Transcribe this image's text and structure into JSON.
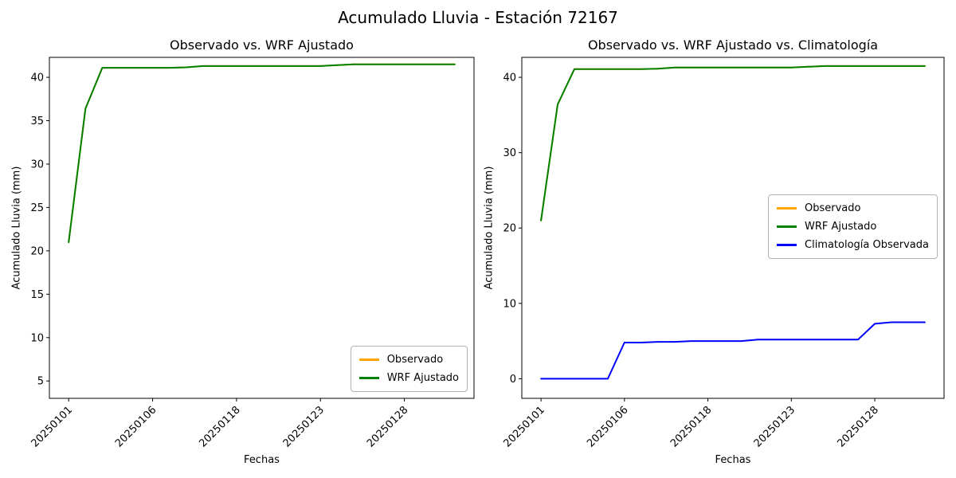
{
  "figure": {
    "title": "Acumulado Lluvia - Estación 72167",
    "background": "#ffffff"
  },
  "chart_data": [
    {
      "type": "line",
      "title": "Observado vs. WRF Ajustado",
      "xlabel": "Fechas",
      "ylabel": "Acumulado Lluvia (mm)",
      "grid": false,
      "legend_position": "lower right",
      "x": [
        "20250101",
        "20250102",
        "20250103",
        "20250104",
        "20250105",
        "20250106",
        "20250107",
        "20250108",
        "20250116",
        "20250117",
        "20250118",
        "20250119",
        "20250120",
        "20250121",
        "20250122",
        "20250123",
        "20250124",
        "20250125",
        "20250126",
        "20250127",
        "20250128",
        "20250129",
        "20250130",
        "20250131"
      ],
      "xtick_indices": [
        0,
        5,
        10,
        15,
        20
      ],
      "xtick_labels": [
        "20250101",
        "20250106",
        "20250118",
        "20250123",
        "20250128"
      ],
      "yticks": [
        5,
        10,
        15,
        20,
        25,
        30,
        35,
        40
      ],
      "ylim": [
        3.0,
        42.3
      ],
      "series": [
        {
          "name": "Observado",
          "color": "#ffa500",
          "values": [
            21.0,
            36.4,
            41.1,
            41.1,
            41.1,
            41.1,
            41.1,
            41.15,
            41.3,
            41.3,
            41.3,
            41.3,
            41.3,
            41.3,
            41.3,
            41.3,
            41.4,
            41.5,
            41.5,
            41.5,
            41.5,
            41.5,
            41.5,
            41.5
          ]
        },
        {
          "name": "WRF Ajustado",
          "color": "#008000",
          "values": [
            21.0,
            36.4,
            41.1,
            41.1,
            41.1,
            41.1,
            41.1,
            41.15,
            41.3,
            41.3,
            41.3,
            41.3,
            41.3,
            41.3,
            41.3,
            41.3,
            41.4,
            41.5,
            41.5,
            41.5,
            41.5,
            41.5,
            41.5,
            41.5
          ]
        }
      ]
    },
    {
      "type": "line",
      "title": "Observado vs. WRF Ajustado vs. Climatología",
      "xlabel": "Fechas",
      "ylabel": "Acumulado Lluvia (mm)",
      "grid": false,
      "legend_position": "center right",
      "x": [
        "20250101",
        "20250102",
        "20250103",
        "20250104",
        "20250105",
        "20250106",
        "20250107",
        "20250108",
        "20250116",
        "20250117",
        "20250118",
        "20250119",
        "20250120",
        "20250121",
        "20250122",
        "20250123",
        "20250124",
        "20250125",
        "20250126",
        "20250127",
        "20250128",
        "20250129",
        "20250130",
        "20250131"
      ],
      "xtick_indices": [
        0,
        5,
        10,
        15,
        20
      ],
      "xtick_labels": [
        "20250101",
        "20250106",
        "20250118",
        "20250123",
        "20250128"
      ],
      "yticks": [
        0,
        10,
        20,
        30,
        40
      ],
      "ylim": [
        -2.6,
        42.65
      ],
      "series": [
        {
          "name": "Observado",
          "color": "#ffa500",
          "values": [
            21.0,
            36.4,
            41.1,
            41.1,
            41.1,
            41.1,
            41.1,
            41.15,
            41.3,
            41.3,
            41.3,
            41.3,
            41.3,
            41.3,
            41.3,
            41.3,
            41.4,
            41.5,
            41.5,
            41.5,
            41.5,
            41.5,
            41.5,
            41.5
          ]
        },
        {
          "name": "WRF Ajustado",
          "color": "#008000",
          "values": [
            21.0,
            36.4,
            41.1,
            41.1,
            41.1,
            41.1,
            41.1,
            41.15,
            41.3,
            41.3,
            41.3,
            41.3,
            41.3,
            41.3,
            41.3,
            41.3,
            41.4,
            41.5,
            41.5,
            41.5,
            41.5,
            41.5,
            41.5,
            41.5
          ]
        },
        {
          "name": "Climatología Observada",
          "color": "#0000ff",
          "values": [
            0.0,
            0.0,
            0.0,
            0.0,
            0.0,
            4.8,
            4.8,
            4.9,
            4.9,
            5.0,
            5.0,
            5.0,
            5.0,
            5.2,
            5.2,
            5.2,
            5.2,
            5.2,
            5.2,
            5.2,
            7.3,
            7.5,
            7.5,
            7.5
          ]
        }
      ]
    }
  ]
}
